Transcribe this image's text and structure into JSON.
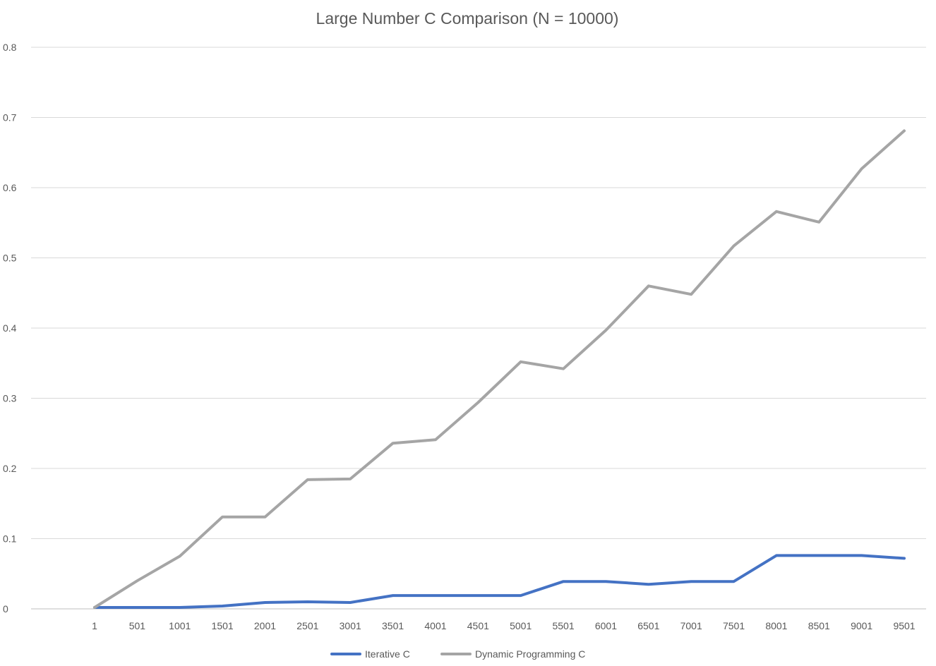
{
  "chart_data": {
    "type": "line",
    "title": "Large Number C Comparison (N = 10000)",
    "xlabel": "",
    "ylabel": "",
    "categories": [
      "1",
      "501",
      "1001",
      "1501",
      "2001",
      "2501",
      "3001",
      "3501",
      "4001",
      "4501",
      "5001",
      "5501",
      "6001",
      "6501",
      "7001",
      "7501",
      "8001",
      "8501",
      "9001",
      "9501"
    ],
    "ylim": [
      0,
      0.8
    ],
    "yticks": [
      0,
      0.1,
      0.2,
      0.3,
      0.4,
      0.5,
      0.6,
      0.7,
      0.8
    ],
    "ytick_labels": [
      "0",
      "0.1",
      "0.2",
      "0.3",
      "0.4",
      "0.5",
      "0.6",
      "0.7",
      "0.8"
    ],
    "grid": true,
    "legend": "bottom",
    "series": [
      {
        "name": "Iterative C",
        "color": "#4472C4",
        "values": [
          0.002,
          0.002,
          0.002,
          0.004,
          0.009,
          0.01,
          0.009,
          0.019,
          0.019,
          0.019,
          0.019,
          0.039,
          0.039,
          0.035,
          0.039,
          0.039,
          0.076,
          0.076,
          0.076,
          0.072
        ]
      },
      {
        "name": "Dynamic Programming C",
        "color": "#A5A5A5",
        "values": [
          0.002,
          0.04,
          0.075,
          0.131,
          0.131,
          0.184,
          0.185,
          0.236,
          0.241,
          0.294,
          0.352,
          0.342,
          0.397,
          0.46,
          0.448,
          0.517,
          0.566,
          0.551,
          0.627,
          0.681
        ]
      }
    ]
  }
}
